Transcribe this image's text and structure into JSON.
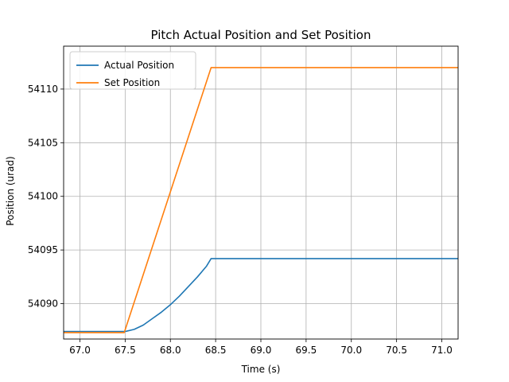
{
  "chart_data": {
    "type": "line",
    "title": "Pitch Actual Position and Set Position",
    "xlabel": "Time (s)",
    "ylabel": "Position (urad)",
    "xlim": [
      66.82,
      71.18
    ],
    "ylim": [
      54086.7,
      54114.0
    ],
    "xticks": [
      67.0,
      67.5,
      68.0,
      68.5,
      69.0,
      69.5,
      70.0,
      70.5,
      71.0
    ],
    "xtick_labels": [
      "67.0",
      "67.5",
      "68.0",
      "68.5",
      "69.0",
      "69.5",
      "70.0",
      "70.5",
      "71.0"
    ],
    "yticks": [
      54090,
      54095,
      54100,
      54105,
      54110
    ],
    "ytick_labels": [
      "54090",
      "54095",
      "54100",
      "54105",
      "54110"
    ],
    "grid": true,
    "legend_position": "top-left",
    "series": [
      {
        "name": "Actual Position",
        "color": "#1f77b4",
        "x": [
          66.82,
          67.0,
          67.2,
          67.4,
          67.5,
          67.6,
          67.7,
          67.8,
          67.9,
          68.0,
          68.1,
          68.2,
          68.3,
          68.4,
          68.45,
          68.6,
          69.0,
          69.5,
          70.0,
          70.5,
          71.0,
          71.18
        ],
        "y": [
          54087.4,
          54087.4,
          54087.4,
          54087.4,
          54087.4,
          54087.6,
          54088.0,
          54088.6,
          54089.2,
          54089.9,
          54090.7,
          54091.6,
          54092.5,
          54093.5,
          54094.2,
          54094.2,
          54094.2,
          54094.2,
          54094.2,
          54094.2,
          54094.2,
          54094.2
        ]
      },
      {
        "name": "Set Position",
        "color": "#ff7f0e",
        "x": [
          66.82,
          67.49,
          68.45,
          71.18
        ],
        "y": [
          54087.3,
          54087.3,
          54112.0,
          54112.0
        ]
      }
    ]
  }
}
